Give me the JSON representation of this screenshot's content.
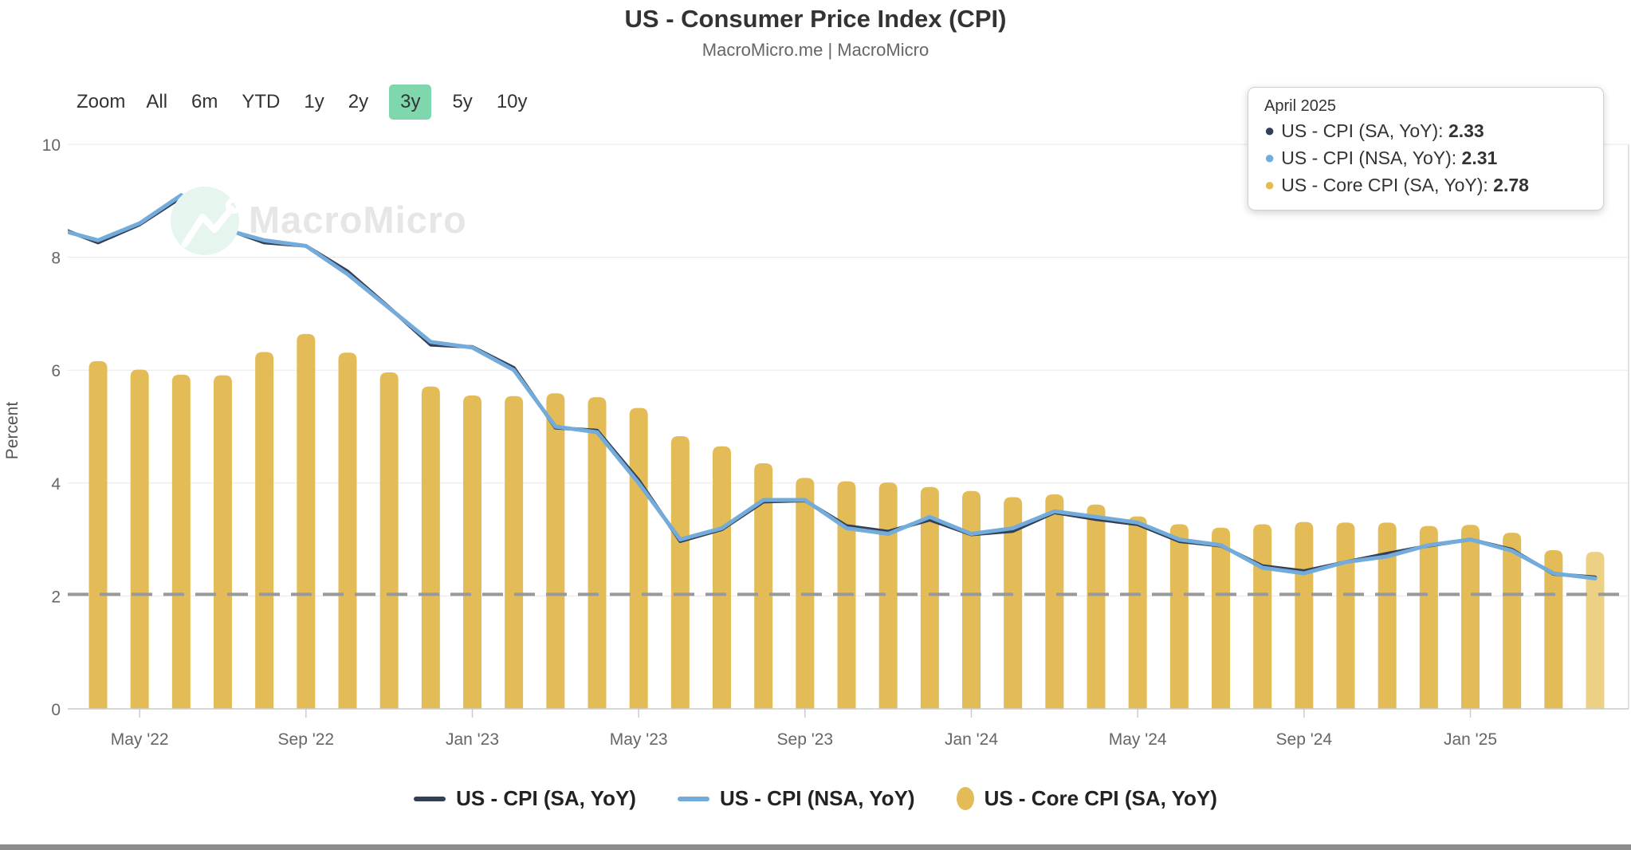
{
  "header": {
    "title": "US - Consumer Price Index (CPI)",
    "subtitle": "MacroMicro.me | MacroMicro"
  },
  "range_selector": {
    "label": "Zoom",
    "options": [
      {
        "label": "All",
        "selected": false
      },
      {
        "label": "6m",
        "selected": false
      },
      {
        "label": "YTD",
        "selected": false
      },
      {
        "label": "1y",
        "selected": false
      },
      {
        "label": "2y",
        "selected": false
      },
      {
        "label": "3y",
        "selected": true
      },
      {
        "label": "5y",
        "selected": false
      },
      {
        "label": "10y",
        "selected": false
      }
    ],
    "selected_bg": "#7FD8AD"
  },
  "tooltip": {
    "date": "April 2025",
    "rows": [
      {
        "label": "US - CPI (SA, YoY)",
        "value": "2.33",
        "color": "#333F54"
      },
      {
        "label": "US - CPI (NSA, YoY)",
        "value": "2.31",
        "color": "#73ACDB"
      },
      {
        "label": "US - Core CPI (SA, YoY)",
        "value": "2.78",
        "color": "#E3BC58"
      }
    ]
  },
  "watermark": {
    "text": "MacroMicro"
  },
  "legend": {
    "items": [
      {
        "label": "US - CPI (SA, YoY)",
        "marker": "line",
        "color": "#333F54"
      },
      {
        "label": "US - CPI (NSA, YoY)",
        "marker": "line",
        "color": "#73ACDB"
      },
      {
        "label": "US - Core CPI (SA, YoY)",
        "marker": "ellipse",
        "color": "#E3BC58"
      }
    ]
  },
  "chart_data": {
    "type": "bar",
    "title": "US - Consumer Price Index (CPI)",
    "xlabel": "",
    "ylabel": "Percent",
    "ylim": [
      0,
      10
    ],
    "yticks": [
      0,
      2,
      4,
      6,
      8,
      10
    ],
    "grid": true,
    "legend_position": "bottom",
    "x": [
      "Apr '22",
      "May '22",
      "Jun '22",
      "Jul '22",
      "Aug '22",
      "Sep '22",
      "Oct '22",
      "Nov '22",
      "Dec '22",
      "Jan '23",
      "Feb '23",
      "Mar '23",
      "Apr '23",
      "May '23",
      "Jun '23",
      "Jul '23",
      "Aug '23",
      "Sep '23",
      "Oct '23",
      "Nov '23",
      "Dec '23",
      "Jan '24",
      "Feb '24",
      "Mar '24",
      "Apr '24",
      "May '24",
      "Jun '24",
      "Jul '24",
      "Aug '24",
      "Sep '24",
      "Oct '24",
      "Nov '24",
      "Dec '24",
      "Jan '25",
      "Feb '25",
      "Mar '25",
      "Apr '25"
    ],
    "xtick_labels": [
      "May '22",
      "Sep '22",
      "Jan '23",
      "May '23",
      "Sep '23",
      "Jan '24",
      "May '24",
      "Sep '24",
      "Jan '25"
    ],
    "xtick_indices": [
      1,
      5,
      9,
      13,
      17,
      21,
      25,
      29,
      33
    ],
    "series": [
      {
        "name": "US - CPI (SA, YoY)",
        "type": "line",
        "color": "#333F54",
        "values": [
          8.26,
          8.58,
          9.06,
          8.52,
          8.26,
          8.2,
          7.75,
          7.11,
          6.45,
          6.41,
          6.04,
          4.98,
          4.93,
          4.05,
          2.97,
          3.18,
          3.67,
          3.69,
          3.24,
          3.14,
          3.35,
          3.09,
          3.15,
          3.48,
          3.36,
          3.27,
          2.97,
          2.89,
          2.53,
          2.44,
          2.6,
          2.75,
          2.89,
          3.0,
          2.82,
          2.39,
          2.33
        ]
      },
      {
        "name": "US - CPI (NSA, YoY)",
        "type": "line",
        "color": "#73ACDB",
        "values": [
          8.3,
          8.6,
          9.1,
          8.5,
          8.3,
          8.2,
          7.7,
          7.1,
          6.5,
          6.4,
          6.0,
          5.0,
          4.9,
          4.0,
          3.0,
          3.2,
          3.7,
          3.7,
          3.2,
          3.1,
          3.4,
          3.1,
          3.2,
          3.5,
          3.4,
          3.3,
          3.0,
          2.9,
          2.5,
          2.4,
          2.6,
          2.7,
          2.9,
          3.0,
          2.8,
          2.4,
          2.31
        ]
      },
      {
        "name": "US - Core CPI (SA, YoY)",
        "type": "bar",
        "color": "#E3BC58",
        "hover_color": "#ECD184",
        "values": [
          6.16,
          6.01,
          5.92,
          5.91,
          6.32,
          6.64,
          6.31,
          5.96,
          5.71,
          5.55,
          5.54,
          5.59,
          5.52,
          5.33,
          4.83,
          4.65,
          4.35,
          4.09,
          4.03,
          4.01,
          3.93,
          3.86,
          3.75,
          3.8,
          3.62,
          3.41,
          3.27,
          3.21,
          3.27,
          3.31,
          3.3,
          3.3,
          3.24,
          3.26,
          3.12,
          2.81,
          2.78
        ]
      }
    ],
    "lead_in": {
      "month": "Mar '22",
      "cpi_sa": 8.54,
      "cpi_nsa": 8.5
    },
    "hovered_point": "April 2025",
    "reference_line": {
      "value": 2,
      "style": "dashed",
      "color": "#999999"
    }
  }
}
